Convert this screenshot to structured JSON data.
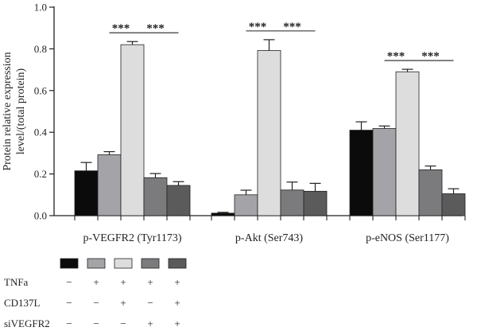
{
  "chart_data": {
    "type": "bar",
    "ylabel_lines": [
      "Protein relative expression",
      "level/(total protein)"
    ],
    "ylim": [
      0,
      1.0
    ],
    "yticks": [
      "0.0",
      "0.2",
      "0.4",
      "0.6",
      "0.8",
      "1.0"
    ],
    "grid": false,
    "categories": [
      "p-VEGFR2 (Tyr1173)",
      "p-Akt (Ser743)",
      "p-eNOS (Ser1177)"
    ],
    "series_colors": [
      "#0b0b0b",
      "#a3a3a8",
      "#dddddd",
      "#7b7b7d",
      "#5b5b5b"
    ],
    "series": [
      {
        "values": [
          0.215,
          0.012,
          0.41
        ],
        "errors": [
          0.04,
          0.004,
          0.04
        ]
      },
      {
        "values": [
          0.292,
          0.1,
          0.418
        ],
        "errors": [
          0.015,
          0.022,
          0.012
        ]
      },
      {
        "values": [
          0.82,
          0.792,
          0.69
        ],
        "errors": [
          0.015,
          0.052,
          0.012
        ]
      },
      {
        "values": [
          0.182,
          0.123,
          0.22
        ],
        "errors": [
          0.02,
          0.038,
          0.018
        ]
      },
      {
        "values": [
          0.145,
          0.117,
          0.105
        ],
        "errors": [
          0.018,
          0.038,
          0.024
        ]
      }
    ],
    "significance": [
      {
        "group": 0,
        "from_series": 1,
        "to_series": 2,
        "label": "***"
      },
      {
        "group": 0,
        "from_series": 2,
        "to_series": 4,
        "label": "***"
      },
      {
        "group": 1,
        "from_series": 1,
        "to_series": 2,
        "label": "***"
      },
      {
        "group": 1,
        "from_series": 2,
        "to_series": 4,
        "label": "***"
      },
      {
        "group": 2,
        "from_series": 1,
        "to_series": 2,
        "label": "***"
      },
      {
        "group": 2,
        "from_series": 2,
        "to_series": 4,
        "label": "***"
      }
    ],
    "condition_table": {
      "rows": [
        {
          "label": "TNFa",
          "signs": [
            "−",
            "+",
            "+",
            "+",
            "+"
          ]
        },
        {
          "label": "CD137L",
          "signs": [
            "−",
            "−",
            "+",
            "−",
            "+"
          ]
        },
        {
          "label": "siVEGFR2",
          "signs": [
            "−",
            "−",
            "−",
            "+",
            "+"
          ]
        }
      ]
    }
  }
}
